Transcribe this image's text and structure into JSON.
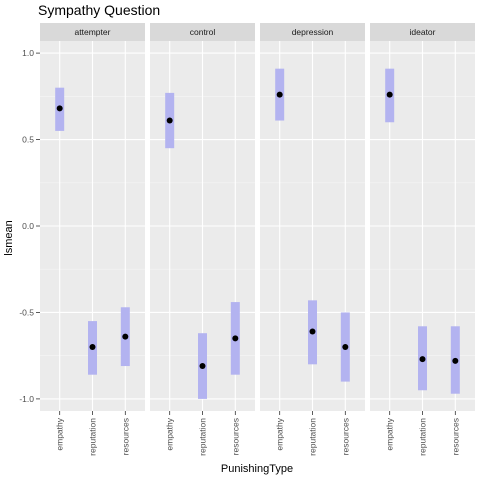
{
  "chart_data": {
    "type": "scatter",
    "title": "Sympathy Question",
    "xlabel": "PunishingType",
    "ylabel": "lsmean",
    "categories": [
      "empathy",
      "reputation",
      "resources"
    ],
    "ylim": [
      -1.07,
      1.07
    ],
    "yticks": [
      1.0,
      0.5,
      0.0,
      -0.5,
      -1.0
    ],
    "ytick_labels": [
      "1.0",
      "0.5",
      "0.0",
      "-0.5",
      "-1.0"
    ],
    "grid": true,
    "colors": {
      "point": "#000000",
      "interval": "#b3b3f0",
      "panel": "#ebebeb",
      "strip": "#d9d9d9"
    },
    "panels": [
      {
        "name": "attempter",
        "points": [
          {
            "x": "empathy",
            "y": 0.68,
            "low": 0.55,
            "high": 0.8
          },
          {
            "x": "reputation",
            "y": -0.7,
            "low": -0.86,
            "high": -0.55
          },
          {
            "x": "resources",
            "y": -0.64,
            "low": -0.81,
            "high": -0.47
          }
        ]
      },
      {
        "name": "control",
        "points": [
          {
            "x": "empathy",
            "y": 0.61,
            "low": 0.45,
            "high": 0.77
          },
          {
            "x": "reputation",
            "y": -0.81,
            "low": -1.0,
            "high": -0.62
          },
          {
            "x": "resources",
            "y": -0.65,
            "low": -0.86,
            "high": -0.44
          }
        ]
      },
      {
        "name": "depression",
        "points": [
          {
            "x": "empathy",
            "y": 0.76,
            "low": 0.61,
            "high": 0.91
          },
          {
            "x": "reputation",
            "y": -0.61,
            "low": -0.8,
            "high": -0.43
          },
          {
            "x": "resources",
            "y": -0.7,
            "low": -0.9,
            "high": -0.5
          }
        ]
      },
      {
        "name": "ideator",
        "points": [
          {
            "x": "empathy",
            "y": 0.76,
            "low": 0.6,
            "high": 0.91
          },
          {
            "x": "reputation",
            "y": -0.77,
            "low": -0.95,
            "high": -0.58
          },
          {
            "x": "resources",
            "y": -0.78,
            "low": -0.97,
            "high": -0.58
          }
        ]
      }
    ]
  }
}
